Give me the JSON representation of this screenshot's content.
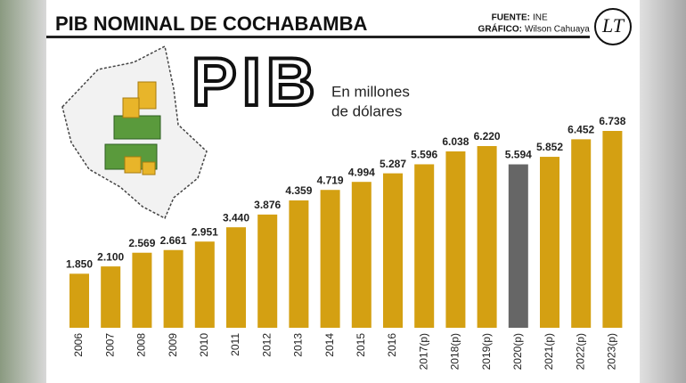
{
  "chart_data": {
    "type": "bar",
    "title": "PIB NOMINAL DE COCHABAMBA",
    "source_label": "FUENTE:",
    "source": "INE",
    "credit_label": "GRÁFICO:",
    "credit": "Wilson Cahuaya",
    "logo": "LT",
    "headline": "PIB",
    "subtitle_lines": [
      "En millones",
      "de dólares"
    ],
    "categories": [
      "2006",
      "2007",
      "2008",
      "2009",
      "2010",
      "2011",
      "2012",
      "2013",
      "2014",
      "2015",
      "2016",
      "2017(p)",
      "2018(p)",
      "2019(p)",
      "2020(p)",
      "2021(p)",
      "2022(p)",
      "2023(p)"
    ],
    "values": [
      1850,
      2100,
      2569,
      2661,
      2951,
      3440,
      3876,
      4359,
      4719,
      4994,
      5287,
      5596,
      6038,
      6220,
      5594,
      5852,
      6452,
      6738
    ],
    "value_labels": [
      "1.850",
      "2.100",
      "2.569",
      "2.661",
      "2.951",
      "3.440",
      "3.876",
      "4.359",
      "4.719",
      "4.994",
      "5.287",
      "5.596",
      "6.038",
      "6.220",
      "5.594",
      "5.852",
      "6.452",
      "6.738"
    ],
    "colors": [
      "#d4a012",
      "#d4a012",
      "#d4a012",
      "#d4a012",
      "#d4a012",
      "#d4a012",
      "#d4a012",
      "#d4a012",
      "#d4a012",
      "#d4a012",
      "#d4a012",
      "#d4a012",
      "#d4a012",
      "#d4a012",
      "#666666",
      "#d4a012",
      "#d4a012",
      "#d4a012"
    ]
  }
}
